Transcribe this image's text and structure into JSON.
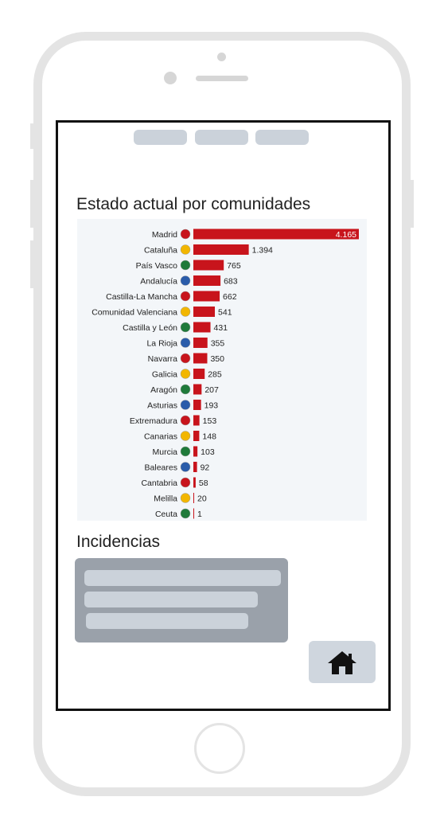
{
  "sections": {
    "estado_title": "Estado actual por comunidades",
    "incidencias_title": "Incidencias"
  },
  "icons": {
    "home": "home-icon"
  },
  "colors": {
    "bar": "#c8141c",
    "chart_background": "#f3f6f9",
    "placeholder": "#cbd2da",
    "card": "#9aa1aa"
  },
  "chart_data": {
    "type": "bar",
    "orientation": "horizontal",
    "title": "",
    "xlabel": "",
    "ylabel": "",
    "categories": [
      "Madrid",
      "Cataluña",
      "País Vasco",
      "Andalucía",
      "Castilla-La Mancha",
      "Comunidad Valenciana",
      "Castilla y León",
      "La Rioja",
      "Navarra",
      "Galicia",
      "Aragón",
      "Asturias",
      "Extremadura",
      "Canarias",
      "Murcia",
      "Baleares",
      "Cantabria",
      "Melilla",
      "Ceuta"
    ],
    "values": [
      4165,
      1394,
      765,
      683,
      662,
      541,
      431,
      355,
      350,
      285,
      207,
      193,
      153,
      148,
      103,
      92,
      58,
      20,
      1
    ],
    "value_labels": [
      "4.165",
      "1.394",
      "765",
      "683",
      "662",
      "541",
      "431",
      "355",
      "350",
      "285",
      "207",
      "193",
      "153",
      "148",
      "103",
      "92",
      "58",
      "20",
      "1"
    ],
    "xlim": [
      0,
      4165
    ],
    "grid": false,
    "legend": "none"
  }
}
